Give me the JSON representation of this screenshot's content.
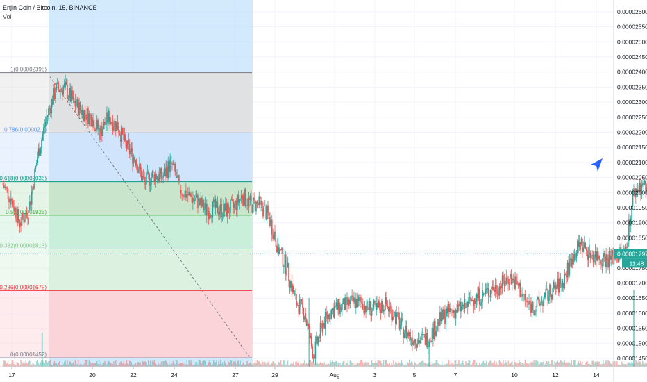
{
  "header": {
    "symbol_label": "Enjin Coin / Bitcoin, 15, BINANCE",
    "indicator_label": "Vol"
  },
  "price_axis": {
    "ticks": [
      "0.00002600",
      "0.00002550",
      "0.00002500",
      "0.00002450",
      "0.00002400",
      "0.00002350",
      "0.00002300",
      "0.00002250",
      "0.00002200",
      "0.00002150",
      "0.00002100",
      "0.00002050",
      "0.00002000",
      "0.00001950",
      "0.00001900",
      "0.00001850",
      "0.00001800",
      "0.00001750",
      "0.00001700",
      "0.00001650",
      "0.00001600",
      "0.00001550",
      "0.00001500",
      "0.00001450"
    ],
    "current_price_label": "0.00001797",
    "countdown_label": "11:48"
  },
  "time_axis": {
    "labels": [
      "17",
      "20",
      "22",
      "24",
      "27",
      "29",
      "Aug",
      "3",
      "5",
      "7",
      "10",
      "12",
      "14"
    ]
  },
  "fib_levels": [
    {
      "label": "1(0.00002398)",
      "ratio": 1,
      "price": 2.398e-05,
      "color": "#787b86"
    },
    {
      "label": "0.786(0.00002...)",
      "ratio": 0.786,
      "price": 2.198e-05,
      "color": "#5b9cf6"
    },
    {
      "label": "0.618(0.00002036)",
      "ratio": 0.618,
      "price": 2.036e-05,
      "color": "#089981"
    },
    {
      "label": "0.5(0.00001925)",
      "ratio": 0.5,
      "price": 1.925e-05,
      "color": "#4caf50"
    },
    {
      "label": "0.382(0.00001813)",
      "ratio": 0.382,
      "price": 1.813e-05,
      "color": "#81c784"
    },
    {
      "label": "0.236(0.00001675)",
      "ratio": 0.236,
      "price": 1.675e-05,
      "color": "#f23645"
    },
    {
      "label": "0(0.00001452)",
      "ratio": 0,
      "price": 1.452e-05,
      "color": "#787b86"
    }
  ],
  "colors": {
    "up": "#26a69a",
    "down": "#ef5350",
    "current_price": "#26a69a",
    "cursor": "#2962ff",
    "date_range": "#bbdefb"
  },
  "chart_data": {
    "type": "candlestick",
    "title": "Enjin Coin / Bitcoin, 15, BINANCE",
    "ylim": [
      1.42e-05,
      2.63e-05
    ],
    "close_series": [
      [
        "Jul 16 00:00",
        2.03e-05
      ],
      [
        "Jul 16 08:00",
        1.98e-05
      ],
      [
        "Jul 16 16:00",
        1.9e-05
      ],
      [
        "Jul 17 00:00",
        1.94e-05
      ],
      [
        "Jul 17 08:00",
        2.12e-05
      ],
      [
        "Jul 17 16:00",
        2.25e-05
      ],
      [
        "Jul 18 00:00",
        2.34e-05
      ],
      [
        "Jul 18 08:00",
        2.35e-05
      ],
      [
        "Jul 18 16:00",
        2.3e-05
      ],
      [
        "Jul 19 00:00",
        2.27e-05
      ],
      [
        "Jul 19 08:00",
        2.25e-05
      ],
      [
        "Jul 19 16:00",
        2.2e-05
      ],
      [
        "Jul 20 00:00",
        2.25e-05
      ],
      [
        "Jul 20 08:00",
        2.22e-05
      ],
      [
        "Jul 20 16:00",
        2.15e-05
      ],
      [
        "Jul 21 00:00",
        2.11e-05
      ],
      [
        "Jul 21 08:00",
        2.03e-05
      ],
      [
        "Jul 21 16:00",
        2.06e-05
      ],
      [
        "Jul 22 00:00",
        2.05e-05
      ],
      [
        "Jul 22 08:00",
        2.1e-05
      ],
      [
        "Jul 22 16:00",
        2.01e-05
      ],
      [
        "Jul 23 00:00",
        1.99e-05
      ],
      [
        "Jul 23 08:00",
        1.97e-05
      ],
      [
        "Jul 23 16:00",
        1.94e-05
      ],
      [
        "Jul 24 00:00",
        1.95e-05
      ],
      [
        "Jul 24 08:00",
        1.94e-05
      ],
      [
        "Jul 24 16:00",
        1.95e-05
      ],
      [
        "Jul 25 00:00",
        1.99e-05
      ],
      [
        "Jul 25 08:00",
        1.96e-05
      ],
      [
        "Jul 25 16:00",
        1.96e-05
      ],
      [
        "Jul 26 00:00",
        1.92e-05
      ],
      [
        "Jul 26 08:00",
        1.82e-05
      ],
      [
        "Jul 26 16:00",
        1.75e-05
      ],
      [
        "Jul 27 00:00",
        1.64e-05
      ],
      [
        "Jul 27 08:00",
        1.6e-05
      ],
      [
        "Jul 27 16:00",
        1.46e-05
      ],
      [
        "Jul 28 00:00",
        1.56e-05
      ],
      [
        "Jul 28 08:00",
        1.61e-05
      ],
      [
        "Jul 28 16:00",
        1.62e-05
      ],
      [
        "Jul 29 00:00",
        1.63e-05
      ],
      [
        "Jul 29 08:00",
        1.64e-05
      ],
      [
        "Jul 29 16:00",
        1.62e-05
      ],
      [
        "Jul 30 00:00",
        1.61e-05
      ],
      [
        "Jul 30 08:00",
        1.63e-05
      ],
      [
        "Jul 30 16:00",
        1.6e-05
      ],
      [
        "Jul 31 00:00",
        1.55e-05
      ],
      [
        "Jul 31 08:00",
        1.52e-05
      ],
      [
        "Jul 31 16:00",
        1.51e-05
      ],
      [
        "Aug 01 00:00",
        1.52e-05
      ],
      [
        "Aug 01 08:00",
        1.57e-05
      ],
      [
        "Aug 01 16:00",
        1.6e-05
      ],
      [
        "Aug 02 00:00",
        1.61e-05
      ],
      [
        "Aug 02 08:00",
        1.62e-05
      ],
      [
        "Aug 02 16:00",
        1.65e-05
      ],
      [
        "Aug 03 00:00",
        1.66e-05
      ],
      [
        "Aug 03 08:00",
        1.68e-05
      ],
      [
        "Aug 03 16:00",
        1.69e-05
      ],
      [
        "Aug 04 00:00",
        1.72e-05
      ],
      [
        "Aug 04 08:00",
        1.69e-05
      ],
      [
        "Aug 04 16:00",
        1.63e-05
      ],
      [
        "Aug 05 00:00",
        1.62e-05
      ],
      [
        "Aug 05 08:00",
        1.65e-05
      ],
      [
        "Aug 05 16:00",
        1.68e-05
      ],
      [
        "Aug 06 00:00",
        1.7e-05
      ],
      [
        "Aug 06 08:00",
        1.78e-05
      ],
      [
        "Aug 06 16:00",
        1.83e-05
      ],
      [
        "Aug 07 00:00",
        1.8e-05
      ],
      [
        "Aug 07 08:00",
        1.79e-05
      ],
      [
        "Aug 07 16:00",
        1.78e-05
      ],
      [
        "Aug 08 00:00",
        1.79e-05
      ],
      [
        "Aug 08 08:00",
        1.8e-05
      ],
      [
        "Aug 08 16:00",
        2e-05
      ],
      [
        "Aug 09 00:00",
        2.03e-05
      ],
      [
        "Aug 09 08:00",
        1.97e-05
      ],
      [
        "Aug 09 16:00",
        1.86e-05
      ],
      [
        "Aug 10 00:00",
        1.8e-05
      ],
      [
        "Aug 10 08:00",
        1.82e-05
      ],
      [
        "Aug 10 16:00",
        1.9e-05
      ],
      [
        "Aug 11 00:00",
        1.82e-05
      ],
      [
        "Aug 11 08:00",
        1.76e-05
      ],
      [
        "Aug 11 16:00",
        1.75e-05
      ],
      [
        "Aug 12 00:00",
        1.76e-05
      ],
      [
        "Aug 12 08:00",
        1.797e-05
      ]
    ],
    "volume_spikes": [
      [
        "Jul 17 12:00",
        0.45
      ],
      [
        "Jul 27 12:00",
        0.9
      ],
      [
        "Aug 01 00:00",
        0.35
      ],
      [
        "Aug 08 16:00",
        1.0
      ],
      [
        "Aug 09 16:00",
        0.55
      ],
      [
        "Aug 10 08:00",
        0.35
      ]
    ]
  }
}
